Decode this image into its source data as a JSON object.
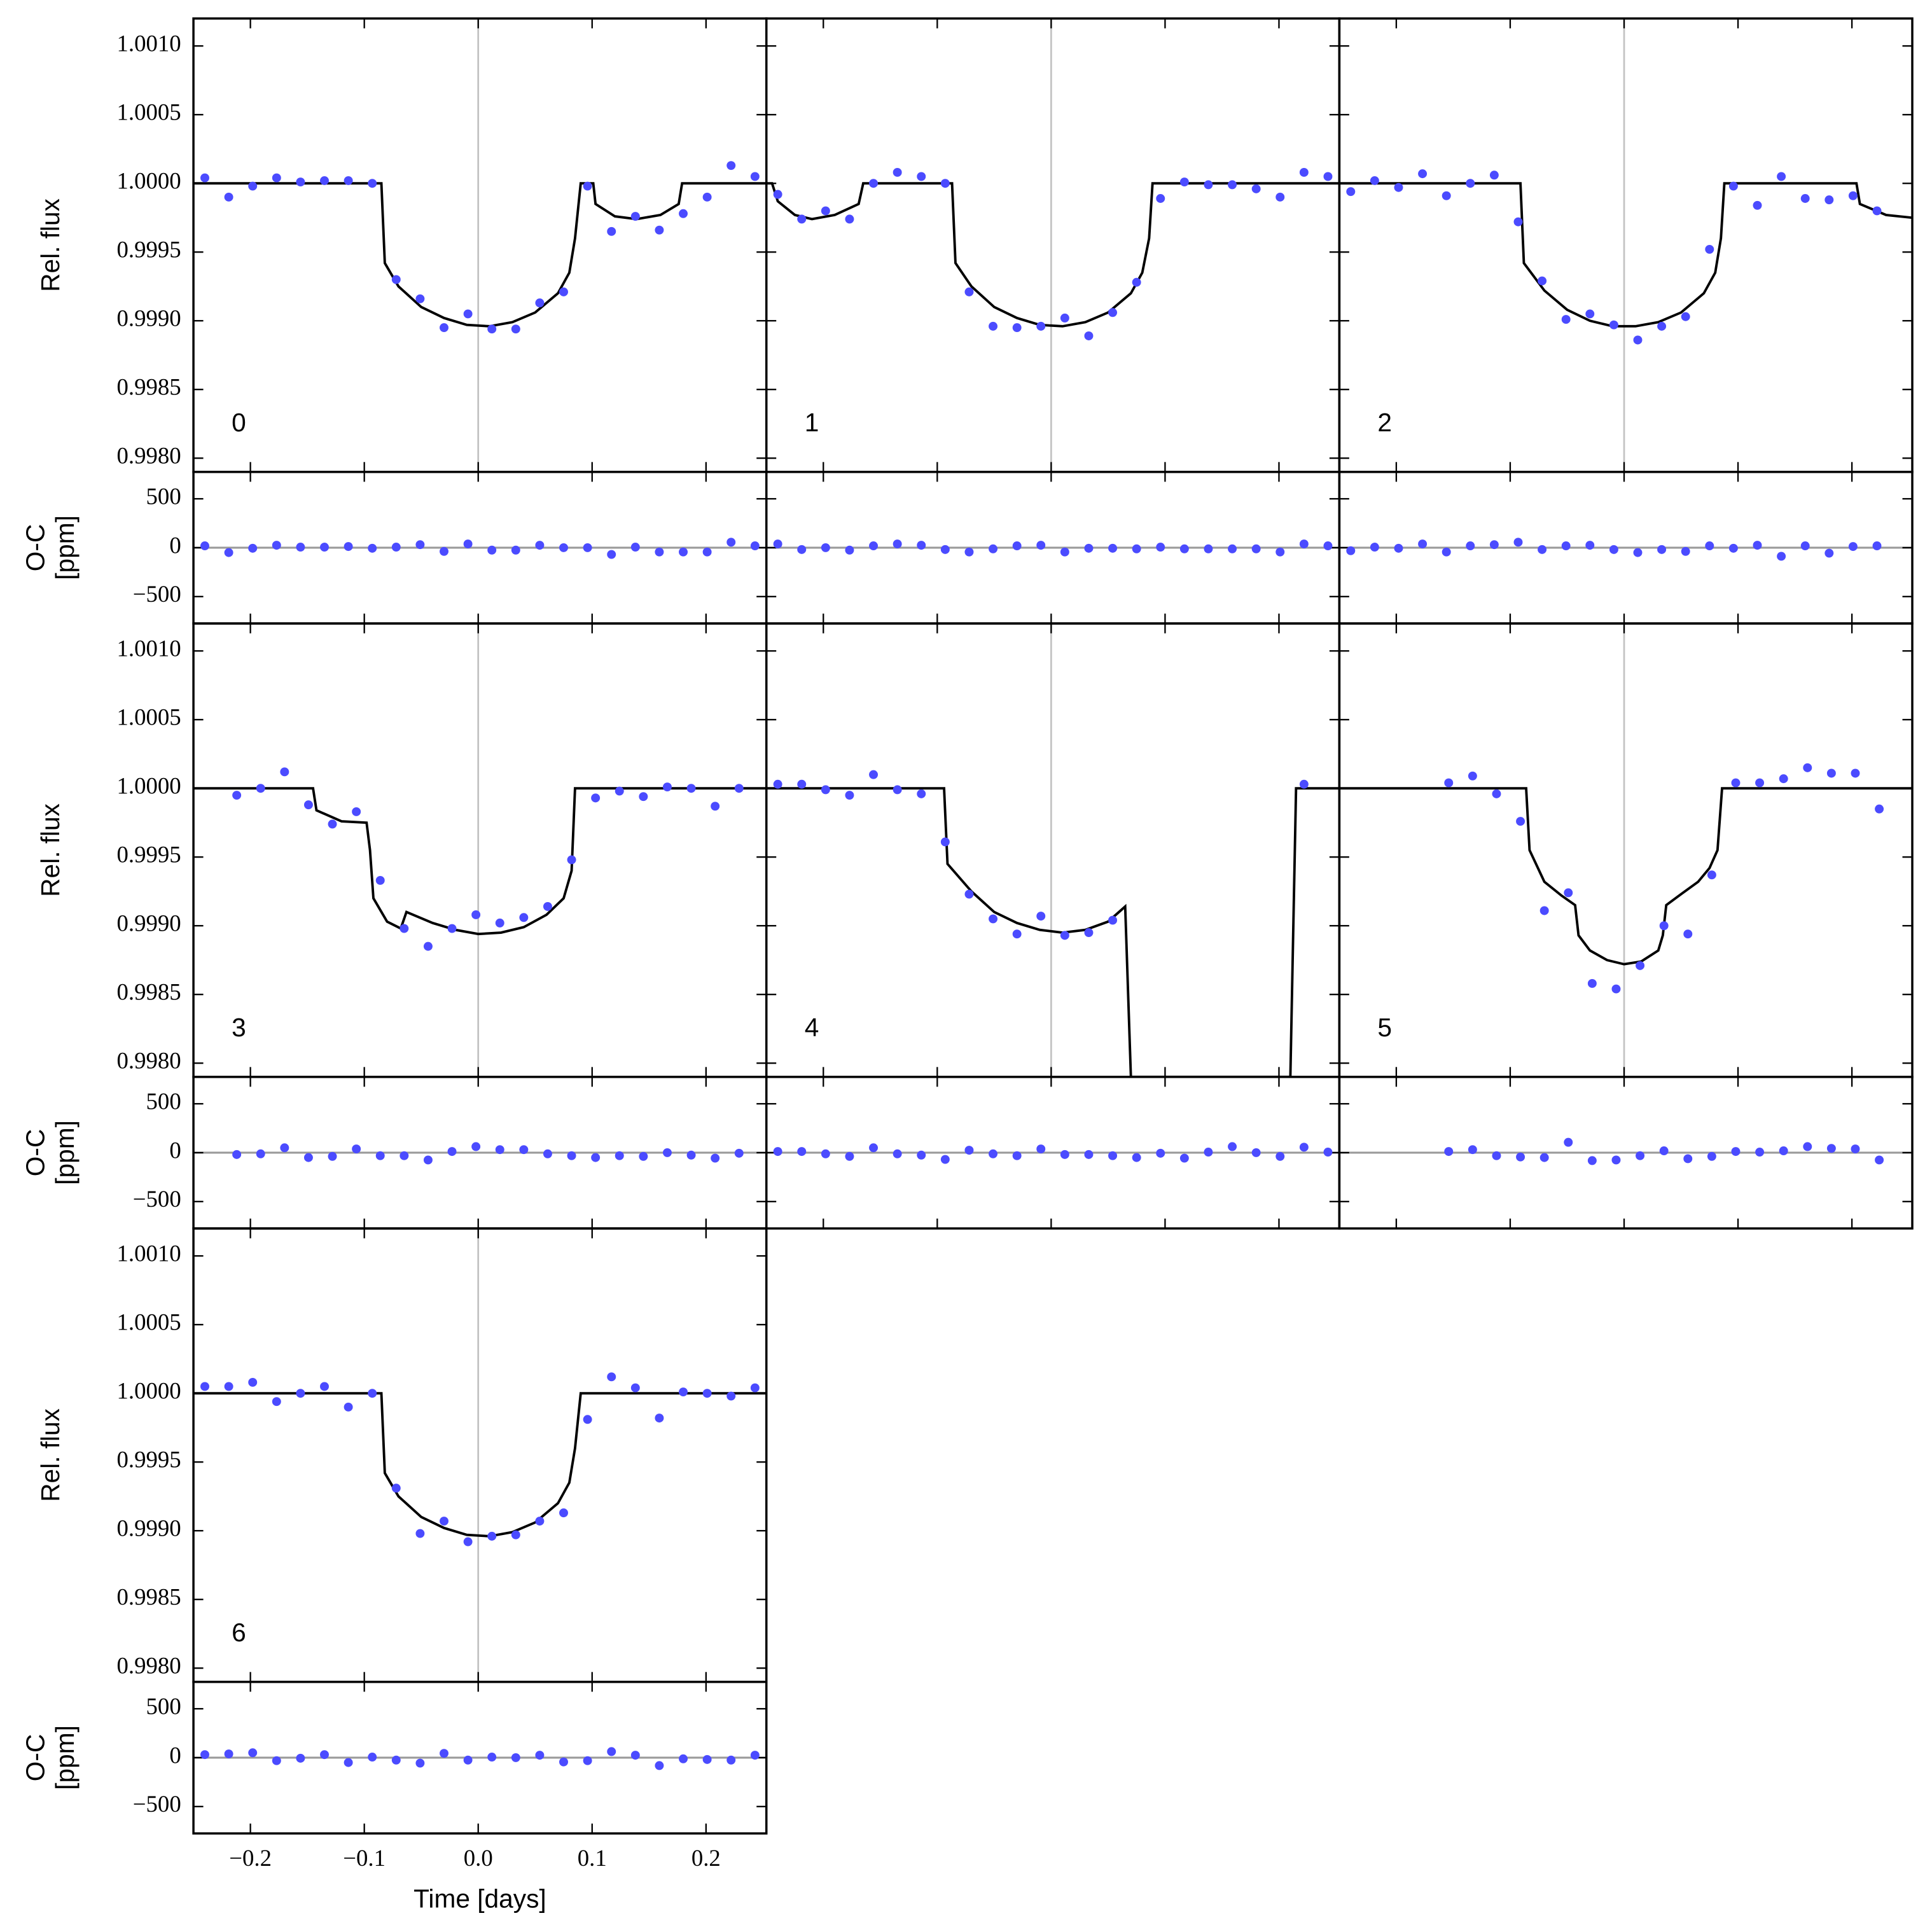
{
  "chart_data": {
    "type": "scatter",
    "xlabel": "Time [days]",
    "ylabel": "Rel. flux",
    "residual_ylabel": [
      "O-C",
      "[ppm]"
    ],
    "xlim": [
      -0.25,
      0.253
    ],
    "xticks": [
      {
        "value": -0.2,
        "label": "−0.2"
      },
      {
        "value": -0.1,
        "label": "−0.1"
      },
      {
        "value": 0,
        "label": "0.0"
      },
      0.1,
      0.2
    ],
    "ylim": [
      0.9979,
      1.0012
    ],
    "yticks": [
      {
        "value": 0.998,
        "label": "0.9980"
      },
      0.9985,
      {
        "value": 0.999,
        "label": "0.9990"
      },
      0.9995,
      {
        "value": 1,
        "label": "1.0000"
      },
      1.0005,
      {
        "value": 1.001,
        "label": "1.0010"
      }
    ],
    "residual_ylim": [
      -775,
      775
    ],
    "residual_yticks": [
      {
        "value": -500,
        "label": "−500"
      },
      0,
      500
    ],
    "binned_color": "#4b4bff",
    "model_color": "#000000",
    "reference_color": "#9a9a9a",
    "panels": [
      {
        "label": "0",
        "x": [
          -0.24,
          -0.219,
          -0.198,
          -0.177,
          -0.156,
          -0.135,
          -0.114,
          -0.093,
          -0.072,
          -0.051,
          -0.03,
          -0.009,
          0.012,
          0.033,
          0.054,
          0.075,
          0.096,
          0.117,
          0.138,
          0.159,
          0.18,
          0.201,
          0.222,
          0.243
        ],
        "flux": [
          1.00004,
          0.9999,
          0.99998,
          1.00004,
          1.00001,
          1.00002,
          1.00002,
          1.0,
          0.9993,
          0.99916,
          0.99895,
          0.99905,
          0.99894,
          0.99894,
          0.99913,
          0.99921,
          0.99998,
          0.99965,
          0.99976,
          0.99966,
          0.99978,
          0.9999,
          1.00013,
          1.00005
        ],
        "residuals": [
          19,
          -50,
          -6,
          25,
          6,
          6,
          12,
          -6,
          6,
          31,
          -38,
          38,
          -25,
          -25,
          25,
          0,
          0,
          -69,
          6,
          -44,
          -44,
          -44,
          56,
          19
        ],
        "model_x": [
          -0.25,
          -0.085,
          -0.082,
          -0.07,
          -0.05,
          -0.03,
          -0.01,
          0.01,
          0.03,
          0.05,
          0.07,
          0.08,
          0.085,
          0.09,
          0.101,
          0.103,
          0.12,
          0.139,
          0.16,
          0.176,
          0.179,
          0.253
        ],
        "model": [
          1,
          1,
          0.99942,
          0.99925,
          0.9991,
          0.99902,
          0.99897,
          0.99896,
          0.99899,
          0.99906,
          0.9992,
          0.99935,
          0.9996,
          1,
          1,
          0.99985,
          0.99976,
          0.99974,
          0.99977,
          0.99985,
          1,
          1
        ]
      },
      {
        "label": "1",
        "x": [
          -0.24,
          -0.219,
          -0.198,
          -0.177,
          -0.156,
          -0.135,
          -0.114,
          -0.093,
          -0.072,
          -0.051,
          -0.03,
          -0.009,
          0.012,
          0.033,
          0.054,
          0.075,
          0.096,
          0.117,
          0.138,
          0.159,
          0.18,
          0.201,
          0.222,
          0.243
        ],
        "flux": [
          0.99992,
          0.99974,
          0.9998,
          0.99974,
          1.0,
          1.00008,
          1.00005,
          1.0,
          0.99921,
          0.99896,
          0.99895,
          0.99896,
          0.99902,
          0.99889,
          0.99906,
          0.99928,
          0.99989,
          1.00001,
          0.99999,
          0.99999,
          0.99996,
          0.9999,
          1.00008,
          1.00005
        ],
        "residuals": [
          38,
          -19,
          0,
          -25,
          19,
          38,
          25,
          -19,
          -44,
          -12,
          19,
          25,
          -44,
          -6,
          -6,
          -12,
          6,
          -12,
          -12,
          -12,
          -12,
          -44,
          38,
          19
        ],
        "model_x": [
          -0.25,
          -0.245,
          -0.24,
          -0.225,
          -0.21,
          -0.19,
          -0.169,
          -0.165,
          -0.087,
          -0.084,
          -0.07,
          -0.05,
          -0.03,
          -0.01,
          0.01,
          0.03,
          0.05,
          0.07,
          0.08,
          0.086,
          0.089,
          0.253
        ],
        "model": [
          1,
          1,
          0.99987,
          0.99977,
          0.99974,
          0.99977,
          0.99985,
          1,
          1,
          0.99942,
          0.99925,
          0.9991,
          0.99902,
          0.99897,
          0.99896,
          0.99899,
          0.99906,
          0.9992,
          0.99935,
          0.9996,
          1,
          1
        ]
      },
      {
        "label": "2",
        "x": [
          -0.24,
          -0.219,
          -0.198,
          -0.177,
          -0.156,
          -0.135,
          -0.114,
          -0.093,
          -0.072,
          -0.051,
          -0.03,
          -0.009,
          0.012,
          0.033,
          0.054,
          0.075,
          0.096,
          0.117,
          0.138,
          0.159,
          0.18,
          0.201,
          0.222,
          0.243
        ],
        "flux": [
          0.99994,
          1.00002,
          0.99997,
          1.00007,
          0.99991,
          1.0,
          1.00006,
          0.99972,
          0.99929,
          0.99901,
          0.99905,
          0.99897,
          0.99886,
          0.99896,
          0.99903,
          0.99952,
          0.99998,
          0.99984,
          1.00005,
          0.99989,
          0.99988,
          0.99991,
          0.9998,
          null
        ],
        "residuals": [
          -31,
          6,
          -6,
          38,
          -44,
          19,
          31,
          56,
          -19,
          19,
          25,
          -19,
          -50,
          -19,
          -38,
          19,
          -6,
          25,
          -88,
          19,
          -56,
          12,
          19,
          null
        ],
        "model_x": [
          -0.25,
          -0.091,
          -0.088,
          -0.07,
          -0.05,
          -0.03,
          -0.01,
          0.01,
          0.03,
          0.05,
          0.07,
          0.08,
          0.085,
          0.088,
          0.204,
          0.207,
          0.23,
          0.253
        ],
        "model": [
          1,
          1,
          0.99942,
          0.99922,
          0.99908,
          0.999,
          0.99896,
          0.99896,
          0.99899,
          0.99906,
          0.9992,
          0.99935,
          0.9996,
          1,
          1,
          0.99985,
          0.99977,
          0.99975
        ]
      },
      {
        "label": "3",
        "x": [
          -0.212,
          -0.191,
          -0.17,
          -0.149,
          -0.128,
          -0.107,
          -0.086,
          -0.065,
          -0.044,
          -0.023,
          -0.002,
          0.019,
          0.04,
          0.061,
          0.082,
          0.103,
          0.124,
          0.145,
          0.166,
          0.187,
          0.208,
          0.229
        ],
        "flux": [
          0.99995,
          1.0,
          1.00012,
          0.99988,
          0.99974,
          0.99983,
          0.99933,
          0.99898,
          0.99885,
          0.99898,
          0.99908,
          0.99902,
          0.99906,
          0.99914,
          0.99948,
          0.99993,
          0.99998,
          0.99994,
          1.00001,
          1.0,
          0.99987,
          1.0
        ],
        "residuals": [
          -19,
          -12,
          50,
          -50,
          -38,
          38,
          -31,
          -31,
          -75,
          12,
          62,
          31,
          31,
          -12,
          -31,
          -50,
          -31,
          -38,
          0,
          -25,
          -56,
          -6
        ],
        "model_x": [
          -0.25,
          -0.145,
          -0.142,
          -0.12,
          -0.098,
          -0.095,
          -0.092,
          -0.08,
          -0.068,
          -0.063,
          -0.04,
          -0.02,
          0,
          0.02,
          0.04,
          0.06,
          0.075,
          0.082,
          0.085,
          0.253
        ],
        "model": [
          1,
          1,
          0.99984,
          0.99976,
          0.99975,
          0.99955,
          0.9992,
          0.99903,
          0.99898,
          0.9991,
          0.99902,
          0.99897,
          0.99894,
          0.99895,
          0.99899,
          0.99908,
          0.9992,
          0.9994,
          1,
          1
        ]
      },
      {
        "label": "4",
        "x": [
          -0.24,
          -0.219,
          -0.198,
          -0.177,
          -0.156,
          -0.135,
          -0.114,
          -0.093,
          -0.072,
          -0.051,
          -0.03,
          -0.009,
          0.012,
          0.033,
          0.054,
          0.075,
          0.096,
          0.117,
          0.138,
          0.159,
          0.18,
          0.201,
          0.222,
          0.243
        ],
        "flux": [
          1.00003,
          1.00003,
          0.99999,
          0.99995,
          1.0001,
          0.99999,
          0.99996,
          0.99961,
          0.99923,
          0.99905,
          0.99894,
          0.99907,
          0.99893,
          0.99895,
          0.99904,
          null,
          null,
          null,
          null,
          null,
          null,
          null,
          1.00003,
          null
        ],
        "residuals": [
          12,
          12,
          -12,
          -38,
          50,
          -12,
          -25,
          -69,
          25,
          -12,
          -31,
          38,
          -19,
          -19,
          -31,
          -50,
          -6,
          -56,
          6,
          62,
          0,
          -38,
          56,
          6
        ],
        "model_x": [
          -0.25,
          -0.094,
          -0.091,
          -0.07,
          -0.05,
          -0.03,
          -0.01,
          0.01,
          0.03,
          0.05,
          0.065,
          0.07,
          0.21,
          0.215,
          0.253
        ],
        "model": [
          1,
          1,
          0.99945,
          0.99925,
          0.9991,
          0.99902,
          0.99897,
          0.99895,
          0.99897,
          0.99903,
          0.99914,
          0.9979,
          0.9979,
          1,
          1
        ]
      },
      {
        "label": "5",
        "x": [
          -0.154,
          -0.133,
          -0.112,
          -0.091,
          -0.07,
          -0.049,
          -0.028,
          -0.007,
          0.014,
          0.035,
          0.056,
          0.077,
          0.098,
          0.119,
          0.14,
          0.161,
          0.182,
          0.203,
          0.224
        ],
        "flux": [
          1.00004,
          1.00009,
          0.99996,
          0.99976,
          0.99911,
          0.99924,
          0.99858,
          0.99854,
          0.99871,
          0.999,
          0.99894,
          0.99937,
          1.00004,
          1.00004,
          1.00007,
          1.00015,
          1.00011,
          1.00011,
          0.99985
        ],
        "residuals": [
          12,
          31,
          -31,
          -44,
          -50,
          106,
          -81,
          -75,
          -31,
          19,
          -62,
          -38,
          12,
          6,
          19,
          62,
          44,
          38,
          -75
        ],
        "model_x": [
          -0.25,
          -0.086,
          -0.083,
          -0.07,
          -0.055,
          -0.043,
          -0.04,
          -0.03,
          -0.015,
          0,
          0.015,
          0.03,
          0.034,
          0.037,
          0.05,
          0.065,
          0.075,
          0.082,
          0.086,
          0.253
        ],
        "model": [
          1,
          1,
          0.99955,
          0.99932,
          0.99922,
          0.99915,
          0.99893,
          0.99882,
          0.99875,
          0.99872,
          0.99874,
          0.99882,
          0.99893,
          0.99915,
          0.99923,
          0.99932,
          0.99942,
          0.99955,
          1,
          1
        ]
      },
      {
        "label": "6",
        "x": [
          -0.24,
          -0.219,
          -0.198,
          -0.177,
          -0.156,
          -0.135,
          -0.114,
          -0.093,
          -0.072,
          -0.051,
          -0.03,
          -0.009,
          0.012,
          0.033,
          0.054,
          0.075,
          0.096,
          0.117,
          0.138,
          0.159,
          0.18,
          0.201,
          0.222,
          0.243
        ],
        "flux": [
          1.00005,
          1.00005,
          1.00008,
          0.99994,
          1.0,
          1.00005,
          0.9999,
          1.0,
          0.99931,
          0.99898,
          0.99907,
          0.99892,
          0.99896,
          0.99897,
          0.99907,
          0.99913,
          0.99981,
          1.00012,
          1.00004,
          0.99982,
          1.00001,
          1.0,
          0.99998,
          1.00004
        ],
        "residuals": [
          31,
          38,
          50,
          -31,
          -6,
          31,
          -50,
          6,
          -25,
          -56,
          44,
          -25,
          6,
          0,
          25,
          -44,
          -31,
          62,
          25,
          -81,
          -12,
          -19,
          -25,
          25
        ],
        "model_x": [
          -0.25,
          -0.085,
          -0.082,
          -0.07,
          -0.05,
          -0.03,
          -0.01,
          0.01,
          0.03,
          0.05,
          0.07,
          0.08,
          0.085,
          0.09,
          0.253
        ],
        "model": [
          1,
          1,
          0.99942,
          0.99925,
          0.9991,
          0.99902,
          0.99897,
          0.99896,
          0.99899,
          0.99906,
          0.9992,
          0.99935,
          0.9996,
          1,
          1
        ]
      }
    ]
  }
}
